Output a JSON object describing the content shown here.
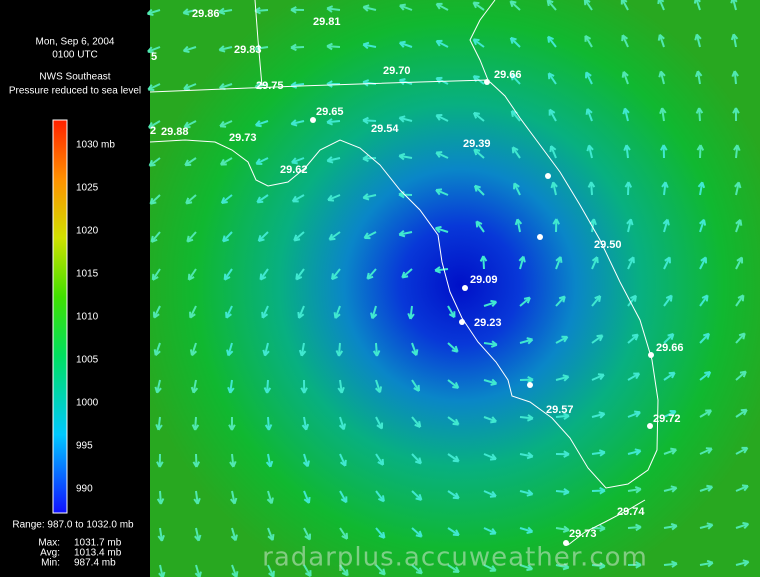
{
  "header": {
    "date": "Mon, Sep 6, 2004",
    "time": "0100 UTC",
    "source": "NWS Southeast",
    "description": "Pressure reduced to sea level"
  },
  "color_scale": {
    "labels": [
      "1030 mb",
      "1025",
      "1020",
      "1015",
      "1010",
      "1005",
      "1000",
      "995",
      "990"
    ],
    "range": "Range: 987.0 to 1032.0 mb",
    "stats": [
      {
        "label": "Max:",
        "value": "1031.7 mb"
      },
      {
        "label": "Avg:",
        "value": "1013.4 mb"
      },
      {
        "label": "Min:",
        "value": "987.4 mb"
      }
    ]
  },
  "stations": [
    "29.86",
    "29.81",
    "29.83",
    "5",
    "29.75",
    "29.70",
    "29.66",
    "29.65",
    "29.54",
    "2",
    "29.88",
    "29.73",
    "29.39",
    "29.62",
    "29.50",
    "29.09",
    "29.23",
    "29.66",
    "29.57",
    "29.72",
    "29.74",
    "29.73"
  ],
  "watermark": "radarplus.accuweather.com"
}
